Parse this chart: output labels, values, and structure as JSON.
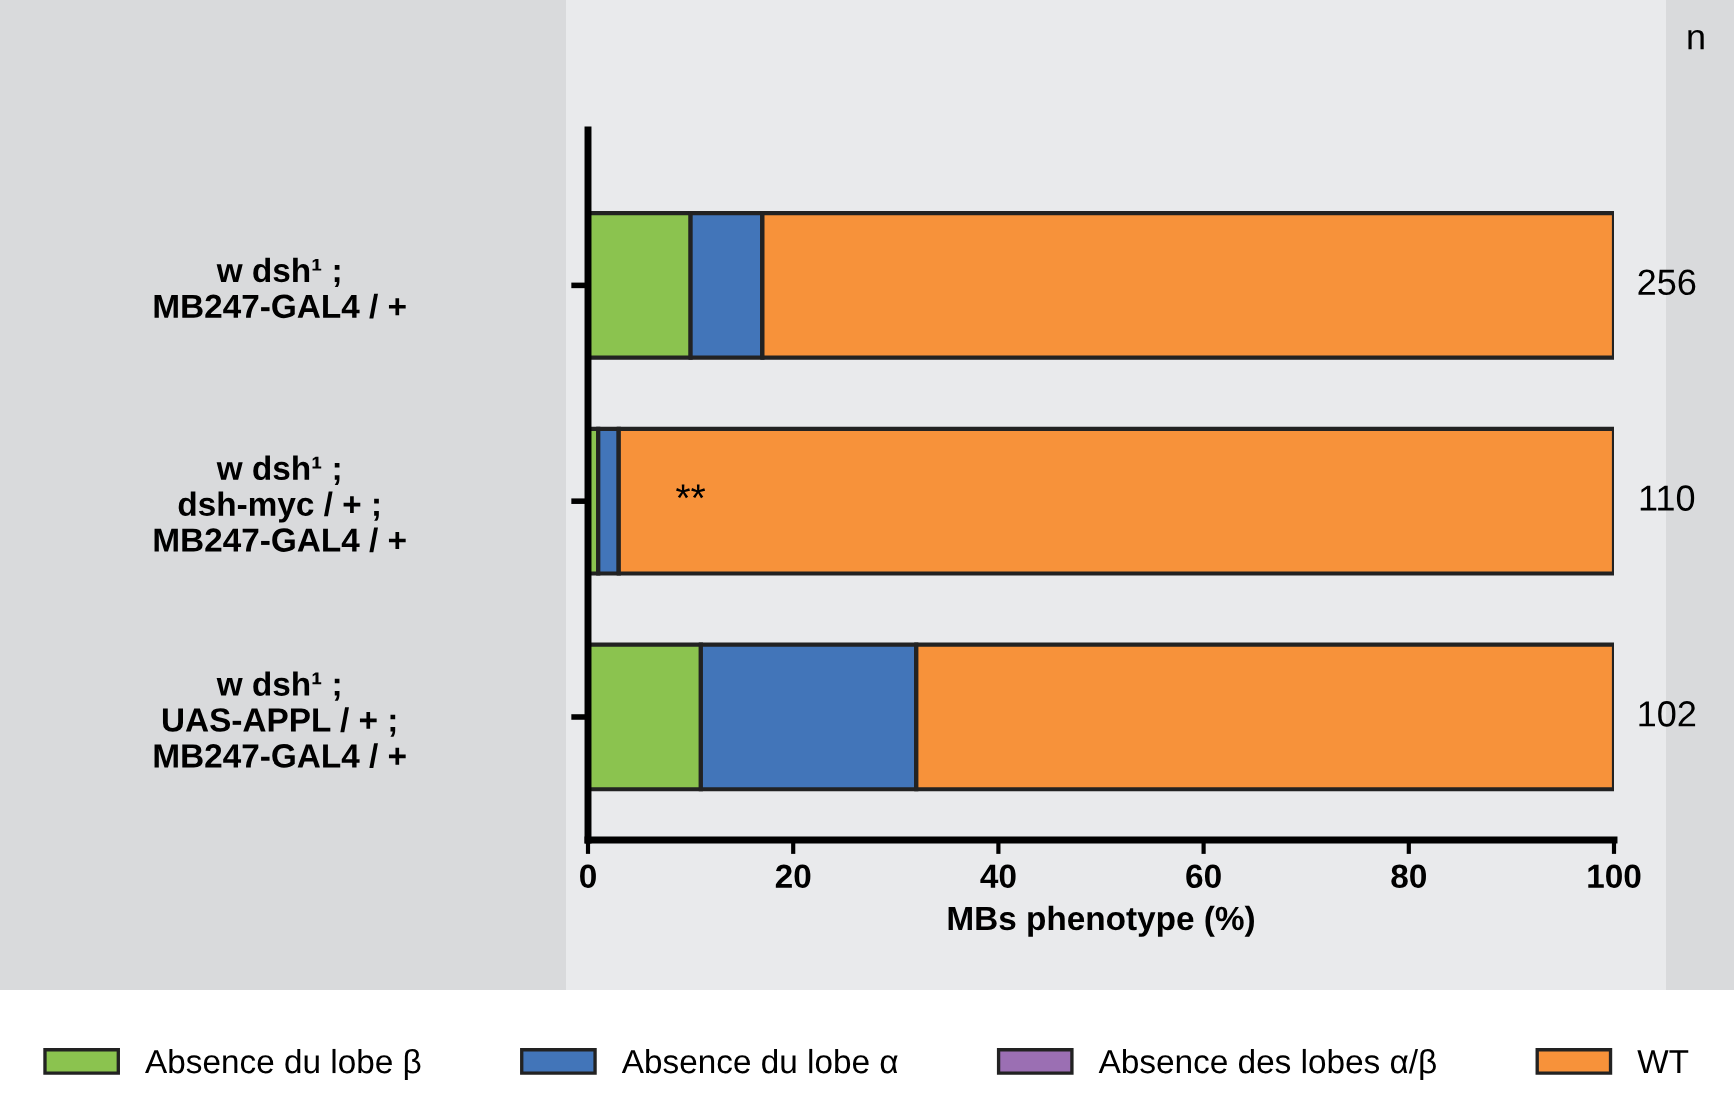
{
  "chart_data": {
    "type": "bar",
    "orientation": "horizontal",
    "stacked": true,
    "xlabel": "MBs phenotype (%)",
    "categories": [
      "w dsh¹ ;\nMB247-GAL4 / +",
      "w dsh¹ ;\ndsh-myc / + ;\nMB247-GAL4 / +",
      "w dsh¹ ;\nUAS-APPL / + ;\nMB247-GAL4 / +"
    ],
    "series": [
      {
        "name": "Absence du lobe β",
        "color": "#8bc34f",
        "values": [
          10,
          1,
          11
        ]
      },
      {
        "name": "Absence du lobe α",
        "color": "#4275b9",
        "values": [
          7,
          2,
          21
        ]
      },
      {
        "name": "Absence des lobes α/β",
        "color": "#9b6fb3",
        "values": [
          0,
          0,
          0
        ]
      },
      {
        "name": "WT",
        "color": "#f7923a",
        "values": [
          83,
          97,
          68
        ]
      }
    ],
    "xlim": [
      0,
      100
    ],
    "xticks": [
      0,
      20,
      40,
      60,
      80,
      100
    ],
    "grid": false,
    "legend": "bottom",
    "annotations": [
      "n",
      "256",
      "110",
      "102",
      "**"
    ]
  }
}
